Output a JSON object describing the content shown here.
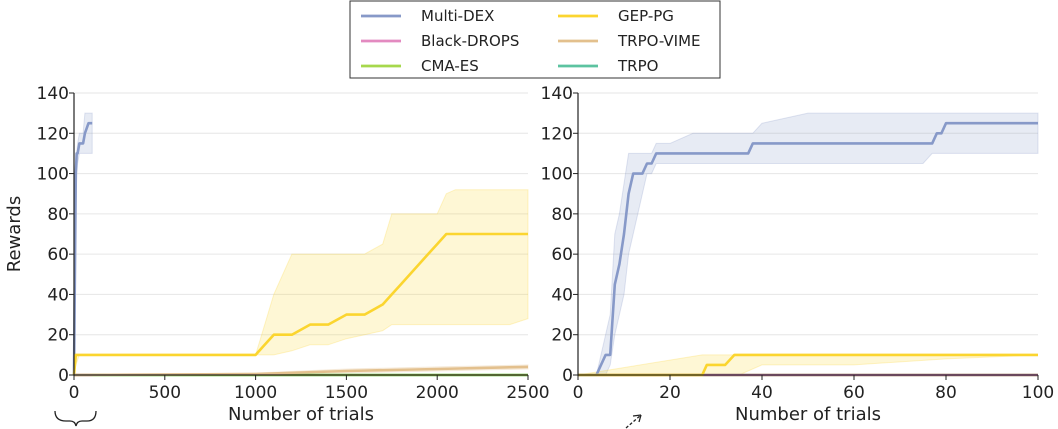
{
  "colors": {
    "Multi-DEX": "#8799c8",
    "Black-DROPS": "#e38ac0",
    "CMA-ES": "#a6d84c",
    "GEP-PG": "#fbd52f",
    "TRPO-VIME": "#e3c08d",
    "TRPO": "#5cc3a0",
    "grid": "#e6e6e6",
    "axis": "#222222"
  },
  "legend": {
    "placement": "top-center",
    "entries": [
      "Multi-DEX",
      "Black-DROPS",
      "CMA-ES",
      "GEP-PG",
      "TRPO-VIME",
      "TRPO"
    ]
  },
  "chart_data": [
    {
      "type": "line",
      "xlabel": "Number of trials",
      "ylabel": "Rewards",
      "xlim": [
        0,
        2500
      ],
      "ylim": [
        0,
        140
      ],
      "xticks": [
        0,
        500,
        1000,
        1500,
        2000,
        2500
      ],
      "yticks": [
        0,
        20,
        40,
        60,
        80,
        100,
        120,
        140
      ],
      "grid": true,
      "annotation": "brace-under-origin",
      "series": [
        {
          "name": "Multi-DEX",
          "x": [
            0,
            10,
            15,
            20,
            30,
            40,
            50,
            60,
            80,
            90,
            100
          ],
          "y": [
            0,
            100,
            110,
            110,
            115,
            115,
            115,
            120,
            125,
            125,
            125
          ],
          "lower": [
            0,
            80,
            100,
            105,
            110,
            110,
            110,
            110,
            110,
            110,
            110
          ],
          "upper": [
            10,
            110,
            110,
            115,
            120,
            120,
            120,
            130,
            130,
            130,
            130
          ]
        },
        {
          "name": "GEP-PG",
          "x": [
            0,
            10,
            30,
            1000,
            1050,
            1100,
            1200,
            1300,
            1400,
            1500,
            1600,
            1700,
            1750,
            1800,
            1850,
            1900,
            1950,
            2000,
            2050,
            2100,
            2200,
            2300,
            2400,
            2500
          ],
          "y": [
            0,
            10,
            10,
            10,
            15,
            20,
            20,
            25,
            25,
            30,
            30,
            35,
            40,
            45,
            50,
            55,
            60,
            65,
            70,
            70,
            70,
            70,
            70,
            70
          ],
          "lower": [
            0,
            5,
            10,
            10,
            10,
            10,
            12,
            15,
            15,
            18,
            20,
            22,
            25,
            25,
            25,
            25,
            25,
            25,
            25,
            25,
            25,
            25,
            25,
            28
          ],
          "upper": [
            10,
            10,
            10,
            10,
            25,
            40,
            60,
            60,
            60,
            60,
            60,
            65,
            80,
            80,
            80,
            80,
            80,
            80,
            90,
            92,
            92,
            92,
            92,
            92
          ]
        },
        {
          "name": "TRPO-VIME",
          "x": [
            0,
            1000,
            1500,
            2000,
            2500
          ],
          "y": [
            0,
            0.5,
            2,
            3,
            4
          ],
          "lower": [
            0,
            0,
            1,
            2,
            3
          ],
          "upper": [
            0,
            1,
            3,
            4,
            5
          ]
        },
        {
          "name": "TRPO",
          "x": [
            0,
            2500
          ],
          "y": [
            0,
            0
          ]
        },
        {
          "name": "CMA-ES",
          "x": [
            0,
            2500
          ],
          "y": [
            0,
            0
          ]
        },
        {
          "name": "Black-DROPS",
          "x": [
            0,
            100
          ],
          "y": [
            0,
            0
          ]
        }
      ]
    },
    {
      "type": "line",
      "xlabel": "Number of trials",
      "ylabel": "",
      "xlim": [
        0,
        100
      ],
      "ylim": [
        0,
        140
      ],
      "xticks": [
        0,
        20,
        40,
        60,
        80,
        100
      ],
      "yticks": [
        0,
        20,
        40,
        60,
        80,
        100,
        120,
        140
      ],
      "grid": true,
      "annotation": "arrow-near-x-10",
      "series": [
        {
          "name": "Multi-DEX",
          "x": [
            0,
            4,
            5,
            6,
            7,
            8,
            9,
            10,
            11,
            12,
            13,
            14,
            15,
            16,
            17,
            18,
            20,
            25,
            30,
            35,
            37,
            38,
            40,
            50,
            60,
            70,
            75,
            77,
            78,
            79,
            80,
            90,
            100
          ],
          "y": [
            0,
            0,
            5,
            10,
            10,
            45,
            55,
            70,
            90,
            100,
            100,
            100,
            105,
            105,
            110,
            110,
            110,
            110,
            110,
            110,
            110,
            115,
            115,
            115,
            115,
            115,
            115,
            115,
            120,
            120,
            125,
            125,
            125
          ],
          "lower": [
            0,
            0,
            0,
            0,
            5,
            20,
            30,
            40,
            60,
            70,
            80,
            90,
            100,
            100,
            105,
            105,
            105,
            105,
            105,
            105,
            105,
            105,
            105,
            105,
            105,
            105,
            105,
            110,
            110,
            110,
            110,
            110,
            110
          ],
          "upper": [
            0,
            0,
            10,
            20,
            30,
            70,
            80,
            95,
            110,
            110,
            110,
            110,
            110,
            110,
            115,
            115,
            115,
            120,
            120,
            120,
            120,
            120,
            125,
            130,
            130,
            130,
            130,
            130,
            130,
            130,
            130,
            130,
            130
          ]
        },
        {
          "name": "GEP-PG",
          "x": [
            0,
            27,
            28,
            30,
            32,
            34,
            35,
            40,
            50,
            60,
            80,
            100
          ],
          "y": [
            0,
            0,
            5,
            5,
            5,
            10,
            10,
            10,
            10,
            10,
            10,
            10
          ],
          "lower": [
            0,
            0,
            0,
            0,
            0,
            0,
            0,
            5,
            5,
            5,
            8,
            10
          ],
          "upper": [
            0,
            10,
            10,
            10,
            10,
            10,
            10,
            10,
            10,
            10,
            10,
            10
          ]
        },
        {
          "name": "TRPO-VIME",
          "x": [
            0,
            100
          ],
          "y": [
            0,
            0
          ]
        },
        {
          "name": "TRPO",
          "x": [
            0,
            100
          ],
          "y": [
            0,
            0
          ]
        },
        {
          "name": "CMA-ES",
          "x": [
            0,
            100
          ],
          "y": [
            0,
            0
          ]
        },
        {
          "name": "Black-DROPS",
          "x": [
            0,
            100
          ],
          "y": [
            0,
            0
          ]
        }
      ]
    }
  ]
}
